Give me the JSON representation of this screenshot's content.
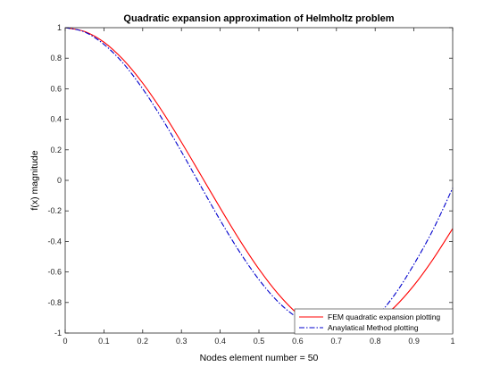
{
  "chart_data": {
    "type": "line",
    "title": "Quadratic expansion approximation of Helmholtz problem",
    "xlabel": "Nodes element number = 50",
    "ylabel": "f(x) magnitude",
    "xlim": [
      0,
      1
    ],
    "ylim": [
      -1,
      1
    ],
    "xticks": [
      0,
      0.1,
      0.2,
      0.3,
      0.4,
      0.5,
      0.6,
      0.7,
      0.8,
      0.9,
      1
    ],
    "xtick_labels": [
      "0",
      "0.1",
      "0.2",
      "0.3",
      "0.4",
      "0.5",
      "0.6",
      "0.7",
      "0.8",
      "0.9",
      "1"
    ],
    "yticks": [
      -1,
      -0.8,
      -0.6,
      -0.4,
      -0.2,
      0,
      0.2,
      0.4,
      0.6,
      0.8,
      1
    ],
    "ytick_labels": [
      "-1",
      "-0.8",
      "-0.6",
      "-0.4",
      "-0.2",
      "0",
      "0.2",
      "0.4",
      "0.6",
      "0.8",
      "1"
    ],
    "grid": false,
    "legend_position": "bottom-right",
    "series": [
      {
        "name": "FEM quadratic expansion plotting",
        "color": "#ff0000",
        "style": "solid",
        "x": [
          0,
          0.05,
          0.1,
          0.15,
          0.2,
          0.25,
          0.3,
          0.35,
          0.4,
          0.45,
          0.5,
          0.55,
          0.6,
          0.65,
          0.7,
          0.75,
          0.8,
          0.85,
          0.9,
          0.95,
          1
        ],
        "y": [
          1.0,
          0.975,
          0.905,
          0.79,
          0.637,
          0.454,
          0.25,
          0.035,
          -0.181,
          -0.39,
          -0.581,
          -0.745,
          -0.875,
          -0.961,
          -1.0,
          -0.99,
          -0.933,
          -0.83,
          -0.688,
          -0.514,
          -0.316
        ]
      },
      {
        "name": "Anaylatical Method plotting",
        "color": "#0000cc",
        "style": "dashdot",
        "x": [
          0,
          0.05,
          0.1,
          0.15,
          0.2,
          0.25,
          0.3,
          0.35,
          0.4,
          0.45,
          0.5,
          0.55,
          0.6,
          0.65,
          0.7,
          0.75,
          0.8,
          0.85,
          0.9,
          0.95,
          1
        ],
        "y": [
          1.0,
          0.972,
          0.891,
          0.766,
          0.6,
          0.404,
          0.188,
          -0.038,
          -0.261,
          -0.468,
          -0.65,
          -0.797,
          -0.901,
          -0.963,
          -1.0,
          -0.98,
          -0.9,
          -0.75,
          -0.55,
          -0.32,
          -0.05
        ]
      }
    ]
  }
}
